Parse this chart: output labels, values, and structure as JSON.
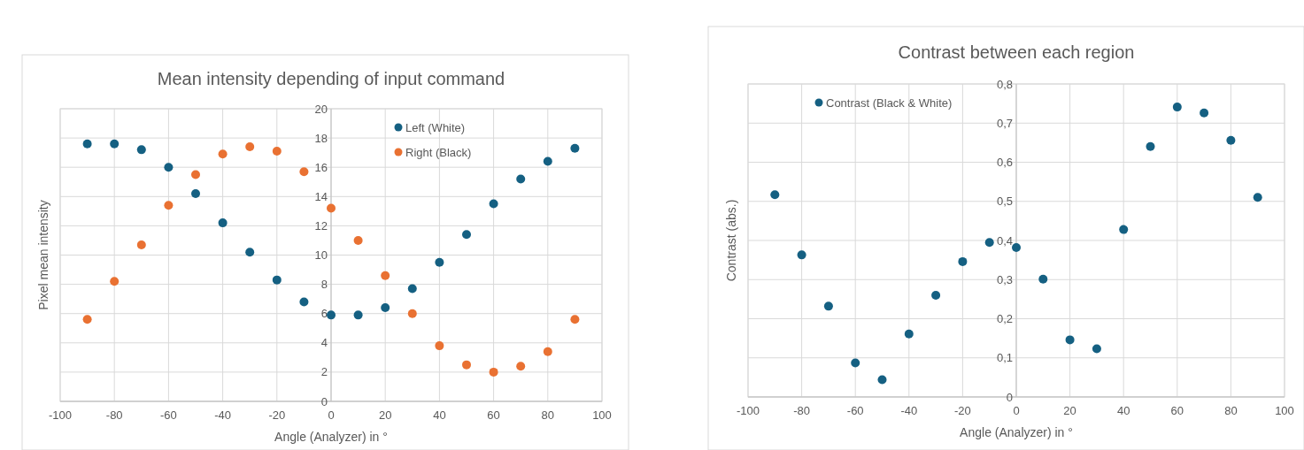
{
  "chart_data": [
    {
      "type": "scatter",
      "title": "Mean intensity depending of input command",
      "xlabel": "Angle (Analyzer) in °",
      "ylabel": "Pixel mean intensity",
      "xlim": [
        -100,
        100
      ],
      "xticks": [
        -100,
        -80,
        -60,
        -40,
        -20,
        0,
        20,
        40,
        60,
        80,
        100
      ],
      "ylim": [
        0,
        20
      ],
      "yticks": [
        0,
        2,
        4,
        6,
        8,
        10,
        12,
        14,
        16,
        18,
        20
      ],
      "grid": true,
      "legend": "top right",
      "marker": "circle",
      "series": [
        {
          "name": "Left (White)",
          "color": "#156082",
          "x": [
            -90,
            -80,
            -70,
            -60,
            -50,
            -40,
            -30,
            -20,
            -10,
            0,
            10,
            20,
            30,
            40,
            50,
            60,
            70,
            80,
            90
          ],
          "values": [
            17.6,
            17.6,
            17.2,
            16.0,
            14.2,
            12.2,
            10.2,
            8.3,
            6.8,
            5.9,
            5.9,
            6.4,
            7.7,
            9.5,
            11.4,
            13.5,
            15.2,
            16.4,
            17.3
          ]
        },
        {
          "name": "Right (Black)",
          "color": "#e97132",
          "x": [
            -90,
            -80,
            -70,
            -60,
            -50,
            -40,
            -30,
            -20,
            -10,
            0,
            10,
            20,
            30,
            40,
            50,
            60,
            70,
            80,
            90
          ],
          "values": [
            5.6,
            8.2,
            10.7,
            13.4,
            15.5,
            16.9,
            17.4,
            17.1,
            15.7,
            13.2,
            11.0,
            8.6,
            6.0,
            3.8,
            2.5,
            2.0,
            2.4,
            3.4,
            5.6
          ]
        }
      ]
    },
    {
      "type": "scatter",
      "title": "Contrast between each region",
      "xlabel": "Angle (Analyzer) in °",
      "ylabel": "Contrast (abs.)",
      "xlim": [
        -100,
        100
      ],
      "xticks": [
        -100,
        -80,
        -60,
        -40,
        -20,
        0,
        20,
        40,
        60,
        80,
        100
      ],
      "ylim": [
        0,
        0.8
      ],
      "yticks": [
        0,
        {
          "value": 0.1,
          "label": "0,1"
        },
        {
          "value": 0.2,
          "label": "0,2"
        },
        {
          "value": 0.3,
          "label": "0,3"
        },
        {
          "value": 0.4,
          "label": "0,4"
        },
        {
          "value": 0.5,
          "label": "0,5"
        },
        {
          "value": 0.6,
          "label": "0,6"
        },
        {
          "value": 0.7,
          "label": "0,7"
        },
        {
          "value": 0.8,
          "label": "0,8"
        }
      ],
      "grid": true,
      "legend": "top left",
      "marker": "circle",
      "series": [
        {
          "name": "Contrast (Black & White)",
          "color": "#156082",
          "x": [
            -90,
            -80,
            -70,
            -60,
            -50,
            -40,
            -30,
            -20,
            -10,
            0,
            10,
            20,
            30,
            40,
            50,
            60,
            70,
            80,
            90
          ],
          "values": [
            0.517,
            0.363,
            0.232,
            0.087,
            0.044,
            0.161,
            0.26,
            0.346,
            0.395,
            0.382,
            0.301,
            0.146,
            0.123,
            0.428,
            0.64,
            0.741,
            0.726,
            0.656,
            0.51
          ]
        }
      ]
    }
  ]
}
